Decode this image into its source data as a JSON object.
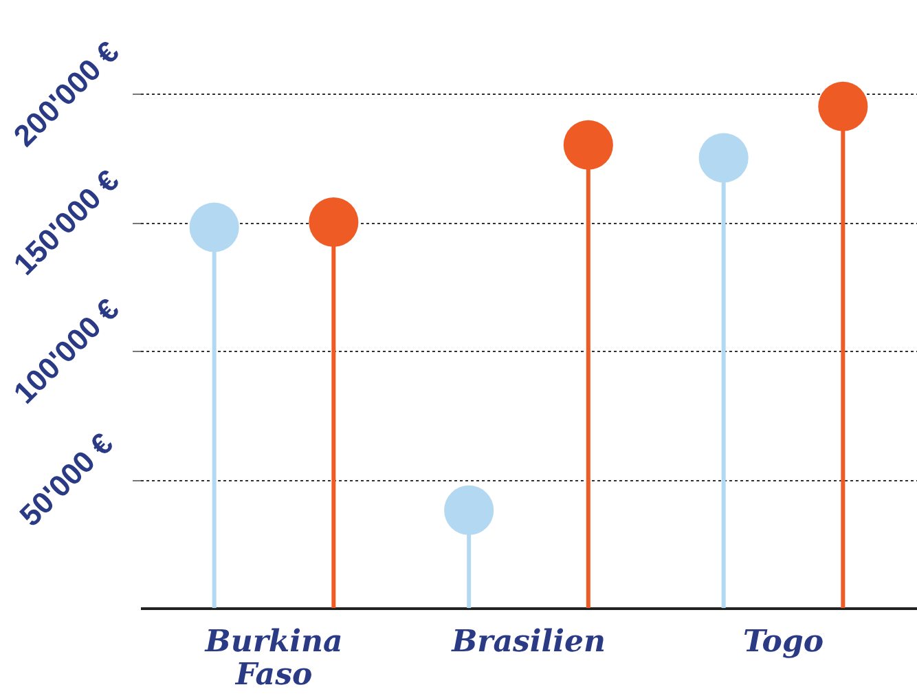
{
  "chart_data": {
    "type": "lollipop",
    "categories": [
      "Burkina Faso",
      "Brasilien",
      "Togo"
    ],
    "series": [
      {
        "color": "#b3d8f1",
        "values": [
          148000,
          38000,
          175000
        ]
      },
      {
        "color": "#ee5b24",
        "values": [
          150000,
          180000,
          195000
        ]
      }
    ],
    "ylim": [
      0,
      200000
    ],
    "yticks": [
      {
        "value": 50000,
        "label": "50'000 €"
      },
      {
        "value": 100000,
        "label": "100'000 €"
      },
      {
        "value": 150000,
        "label": "150'000 €"
      },
      {
        "value": 200000,
        "label": "200'000 €"
      }
    ],
    "grid": "y",
    "marker": "circle"
  }
}
